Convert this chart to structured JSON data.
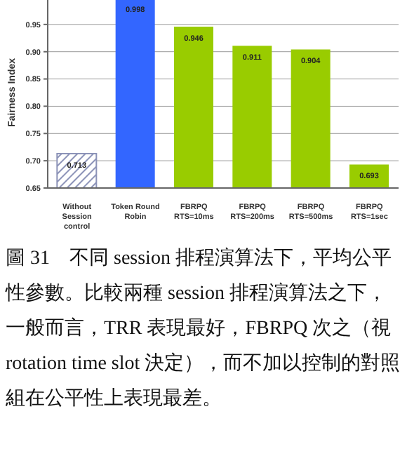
{
  "chart_data": {
    "type": "bar",
    "ylabel": "Fairness Index",
    "categories": [
      "Without Session control",
      "Token Round Robin",
      "FBRPQ RTS=10ms",
      "FBRPQ RTS=200ms",
      "FBRPQ RTS=500ms",
      "FBRPQ RTS=1sec"
    ],
    "values": [
      0.713,
      0.998,
      0.946,
      0.911,
      0.904,
      0.693
    ],
    "colors": [
      "#8c93b8",
      "#3366ff",
      "#99cc00",
      "#99cc00",
      "#99cc00",
      "#99cc00"
    ],
    "ylim": [
      0.65,
      1.0
    ],
    "yticks": [
      {
        "value": 0.65,
        "label": "0.65"
      },
      {
        "value": 0.7,
        "label": "0.70"
      },
      {
        "value": 0.75,
        "label": "0.75"
      },
      {
        "value": 0.8,
        "label": "0.80"
      },
      {
        "value": 0.85,
        "label": "0.85"
      },
      {
        "value": 0.9,
        "label": "0.90"
      },
      {
        "value": 0.95,
        "label": "0.95"
      }
    ],
    "grid": "y",
    "data_labels": true,
    "annotations": [
      "圖 31　不同 session 排程演算法下，平均公平性參數。比較兩種 session 排程演算法之下，一般而言，TRR 表現最好，FBRPQ 次之（視 rotation time slot 決定），而不加以控制的對照組在公平性上表現最差。"
    ]
  }
}
